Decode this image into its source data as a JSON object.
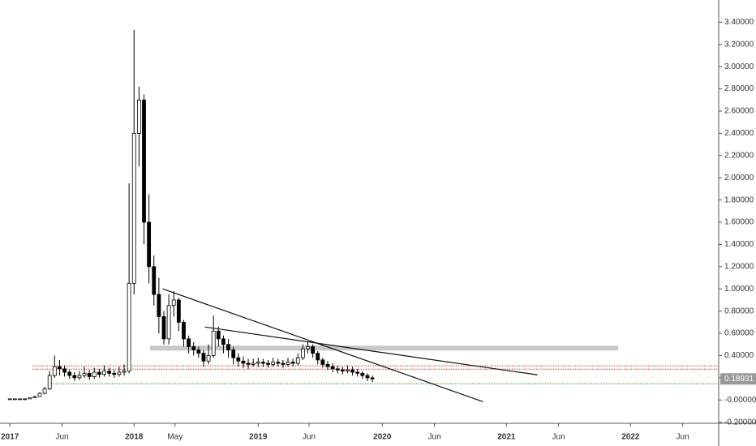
{
  "chart_data": {
    "type": "candlestick",
    "x": [
      2017.0,
      2017.04,
      2017.08,
      2017.12,
      2017.16,
      2017.2,
      2017.24,
      2017.28,
      2017.32,
      2017.36,
      2017.4,
      2017.44,
      2017.48,
      2017.52,
      2017.56,
      2017.6,
      2017.64,
      2017.68,
      2017.72,
      2017.76,
      2017.8,
      2017.84,
      2017.88,
      2017.92,
      2017.96,
      2018.0,
      2018.04,
      2018.08,
      2018.12,
      2018.16,
      2018.2,
      2018.24,
      2018.28,
      2018.32,
      2018.36,
      2018.4,
      2018.44,
      2018.48,
      2018.52,
      2018.56,
      2018.6,
      2018.64,
      2018.68,
      2018.72,
      2018.76,
      2018.8,
      2018.84,
      2018.88,
      2018.92,
      2018.96,
      2019.0,
      2019.04,
      2019.08,
      2019.12,
      2019.16,
      2019.2,
      2019.24,
      2019.28,
      2019.32,
      2019.36,
      2019.4,
      2019.44,
      2019.48,
      2019.52,
      2019.56,
      2019.6,
      2019.64,
      2019.68,
      2019.72,
      2019.76,
      2019.8,
      2019.84,
      2019.88,
      2019.92
    ],
    "open": [
      0.01,
      0.01,
      0.01,
      0.01,
      0.01,
      0.02,
      0.03,
      0.06,
      0.1,
      0.22,
      0.3,
      0.28,
      0.25,
      0.22,
      0.2,
      0.22,
      0.24,
      0.21,
      0.25,
      0.23,
      0.26,
      0.24,
      0.23,
      0.25,
      0.26,
      1.05,
      2.4,
      2.7,
      1.6,
      1.2,
      0.95,
      0.75,
      0.55,
      0.85,
      0.9,
      0.7,
      0.55,
      0.48,
      0.45,
      0.42,
      0.35,
      0.4,
      0.62,
      0.55,
      0.5,
      0.45,
      0.38,
      0.35,
      0.33,
      0.32,
      0.33,
      0.34,
      0.33,
      0.32,
      0.34,
      0.33,
      0.32,
      0.34,
      0.33,
      0.38,
      0.46,
      0.48,
      0.42,
      0.36,
      0.32,
      0.3,
      0.28,
      0.27,
      0.26,
      0.27,
      0.25,
      0.24,
      0.22,
      0.2
    ],
    "high": [
      0.01,
      0.01,
      0.01,
      0.01,
      0.02,
      0.04,
      0.07,
      0.12,
      0.26,
      0.4,
      0.36,
      0.31,
      0.27,
      0.25,
      0.26,
      0.3,
      0.27,
      0.29,
      0.28,
      0.31,
      0.29,
      0.27,
      0.3,
      0.32,
      1.95,
      3.33,
      2.82,
      2.75,
      1.85,
      1.3,
      1.1,
      0.8,
      0.95,
      0.98,
      0.92,
      0.72,
      0.58,
      0.52,
      0.48,
      0.45,
      0.5,
      0.76,
      0.66,
      0.58,
      0.55,
      0.48,
      0.42,
      0.39,
      0.37,
      0.37,
      0.38,
      0.37,
      0.36,
      0.38,
      0.37,
      0.36,
      0.38,
      0.37,
      0.42,
      0.5,
      0.52,
      0.5,
      0.44,
      0.38,
      0.35,
      0.33,
      0.31,
      0.3,
      0.31,
      0.3,
      0.28,
      0.26,
      0.24,
      0.22
    ],
    "low": [
      0.0,
      0.0,
      0.0,
      0.0,
      0.01,
      0.02,
      0.03,
      0.05,
      0.09,
      0.2,
      0.22,
      0.21,
      0.19,
      0.17,
      0.18,
      0.2,
      0.18,
      0.19,
      0.2,
      0.21,
      0.21,
      0.2,
      0.21,
      0.22,
      0.24,
      0.95,
      2.1,
      1.4,
      1.05,
      0.85,
      0.6,
      0.5,
      0.5,
      0.75,
      0.62,
      0.48,
      0.42,
      0.4,
      0.38,
      0.3,
      0.32,
      0.38,
      0.48,
      0.42,
      0.38,
      0.32,
      0.3,
      0.29,
      0.28,
      0.3,
      0.3,
      0.3,
      0.29,
      0.3,
      0.3,
      0.29,
      0.3,
      0.3,
      0.31,
      0.36,
      0.42,
      0.38,
      0.32,
      0.29,
      0.27,
      0.25,
      0.24,
      0.23,
      0.24,
      0.22,
      0.21,
      0.19,
      0.17,
      0.16
    ],
    "close": [
      0.01,
      0.01,
      0.01,
      0.01,
      0.02,
      0.03,
      0.06,
      0.1,
      0.22,
      0.3,
      0.28,
      0.25,
      0.22,
      0.2,
      0.22,
      0.24,
      0.21,
      0.25,
      0.23,
      0.26,
      0.24,
      0.23,
      0.25,
      0.26,
      1.05,
      2.4,
      2.7,
      1.6,
      1.2,
      0.95,
      0.75,
      0.55,
      0.85,
      0.9,
      0.7,
      0.55,
      0.48,
      0.45,
      0.42,
      0.35,
      0.4,
      0.62,
      0.55,
      0.5,
      0.45,
      0.38,
      0.35,
      0.33,
      0.32,
      0.33,
      0.34,
      0.33,
      0.32,
      0.34,
      0.33,
      0.32,
      0.34,
      0.33,
      0.38,
      0.46,
      0.48,
      0.42,
      0.36,
      0.32,
      0.3,
      0.28,
      0.27,
      0.26,
      0.27,
      0.25,
      0.24,
      0.22,
      0.2,
      0.19
    ],
    "up_color": "#ffffff",
    "down_color": "#000000",
    "xlim": [
      2016.92,
      2022.71
    ],
    "ylim": [
      -0.21,
      3.6
    ],
    "xticks": [
      {
        "value": 2017.0,
        "label": "2017"
      },
      {
        "value": 2017.42,
        "label": "Jun"
      },
      {
        "value": 2018.0,
        "label": "2018"
      },
      {
        "value": 2018.33,
        "label": "May"
      },
      {
        "value": 2019.0,
        "label": "2019"
      },
      {
        "value": 2019.41,
        "label": "Jun"
      },
      {
        "value": 2020.0,
        "label": "2020"
      },
      {
        "value": 2020.42,
        "label": "Jun"
      },
      {
        "value": 2021.0,
        "label": "2021"
      },
      {
        "value": 2021.42,
        "label": "Jun"
      },
      {
        "value": 2022.0,
        "label": "2022"
      },
      {
        "value": 2022.42,
        "label": "Jun"
      }
    ],
    "yticks": [
      {
        "value": 3.4,
        "label": "3.40000"
      },
      {
        "value": 3.2,
        "label": "3.20000"
      },
      {
        "value": 3.0,
        "label": "3.00000"
      },
      {
        "value": 2.8,
        "label": "2.80000"
      },
      {
        "value": 2.6,
        "label": "2.60000"
      },
      {
        "value": 2.4,
        "label": "2.40000"
      },
      {
        "value": 2.2,
        "label": "2.20000"
      },
      {
        "value": 2.0,
        "label": "2.00000"
      },
      {
        "value": 1.8,
        "label": "1.80000"
      },
      {
        "value": 1.6,
        "label": "1.60000"
      },
      {
        "value": 1.4,
        "label": "1.40000"
      },
      {
        "value": 1.2,
        "label": "1.20000"
      },
      {
        "value": 1.0,
        "label": "1.00000"
      },
      {
        "value": 0.8,
        "label": "0.80000"
      },
      {
        "value": 0.6,
        "label": "0.60000"
      },
      {
        "value": 0.4,
        "label": "0.40000"
      },
      {
        "value": 0.2,
        "label": "0.20000"
      },
      {
        "value": 0,
        "label": "-0.00000"
      },
      {
        "value": -0.2,
        "label": "-0.20000"
      }
    ],
    "last_price": 0.18931,
    "drawings": {
      "levels": [
        {
          "x": 2017.18,
          "price": 0.307,
          "color": "#c0392b"
        },
        {
          "x": 2017.18,
          "price": 0.277,
          "color": "#c0392b"
        },
        {
          "x": 2017.31,
          "price": 0.146,
          "color": "#2e8b2e"
        }
      ],
      "zone": {
        "x": [
          2018.13,
          2021.9
        ],
        "price": 0.467,
        "color": "#c8c8c8"
      },
      "trend_lines": [
        {
          "x": [
            2018.23,
            2020.81
          ],
          "price": [
            1.0,
            -0.015
          ]
        },
        {
          "x": [
            2018.57,
            2021.25
          ],
          "price": [
            0.657,
            0.226
          ]
        }
      ]
    }
  }
}
